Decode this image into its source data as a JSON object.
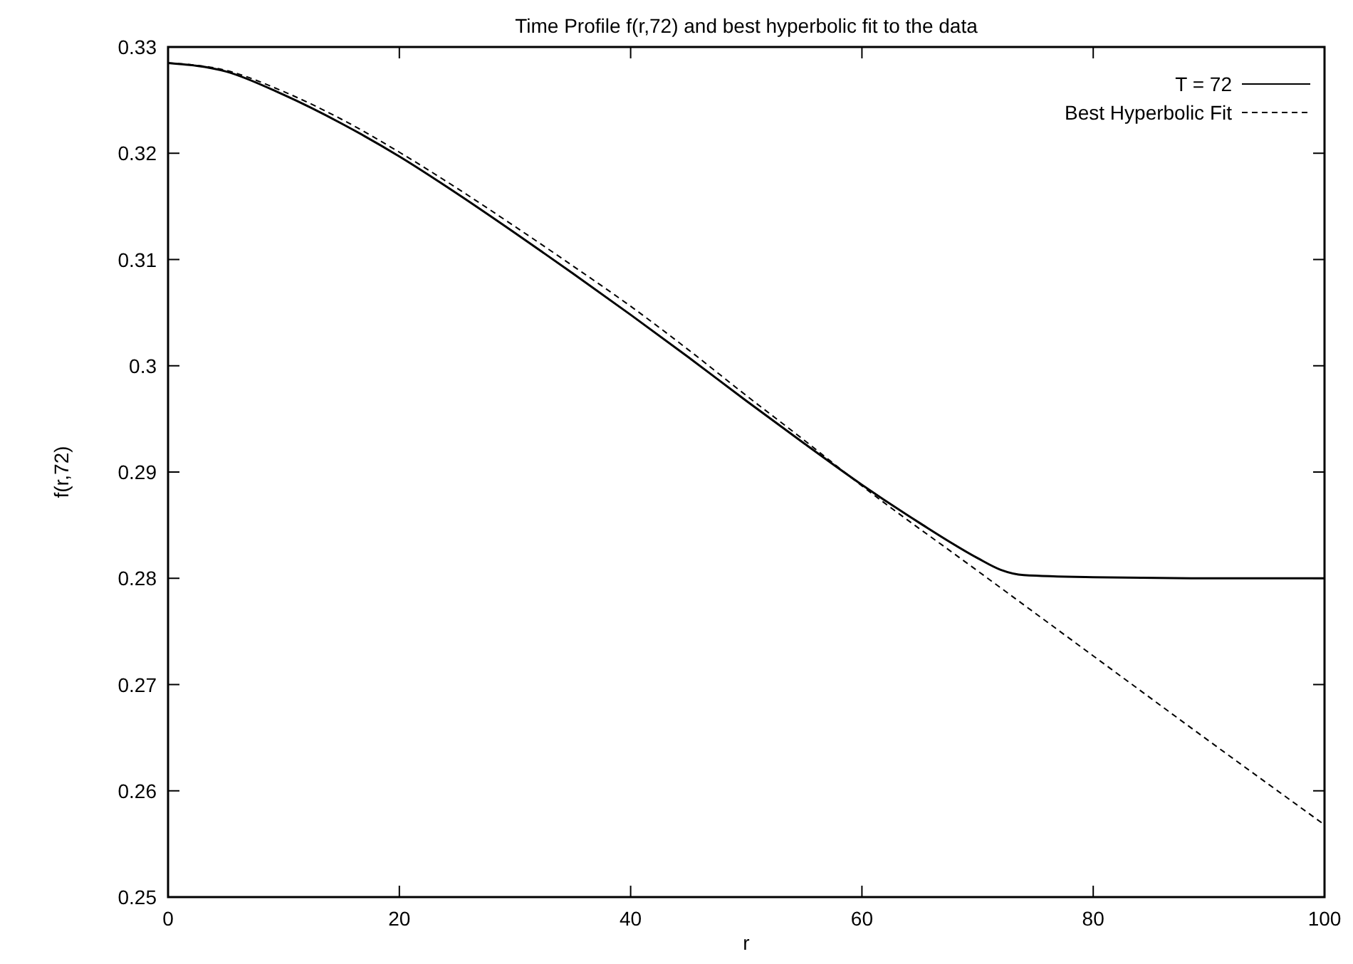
{
  "chart_data": {
    "type": "line",
    "title": "Time Profile f(r,72) and best hyperbolic fit to the data",
    "xlabel": "r",
    "ylabel": "f(r,72)",
    "xlim": [
      0,
      100
    ],
    "xticks": [
      0,
      20,
      40,
      60,
      80,
      100
    ],
    "ylim": [
      0.25,
      0.33
    ],
    "yticks": [
      0.25,
      0.26,
      0.27,
      0.28,
      0.29,
      0.3,
      0.31,
      0.32,
      0.33
    ],
    "legend": "top right",
    "grid": false,
    "series": [
      {
        "name": "T = 72",
        "color": "#000000",
        "line_style": "solid",
        "x": [
          0,
          5,
          10,
          15,
          20,
          25,
          30,
          35,
          40,
          45,
          50,
          55,
          60,
          65,
          70,
          72,
          74,
          80,
          90,
          100
        ],
        "values": [
          0.3285,
          0.3277,
          0.3255,
          0.3228,
          0.3197,
          0.3162,
          0.3125,
          0.3087,
          0.3048,
          0.3008,
          0.2967,
          0.2927,
          0.2888,
          0.2852,
          0.2819,
          0.2808,
          0.2803,
          0.2801,
          0.28,
          0.28
        ]
      },
      {
        "name": "Best Hyperbolic Fit",
        "color": "#000000",
        "line_style": "dashed",
        "x": [
          0,
          5,
          10,
          15,
          20,
          25,
          30,
          35,
          40,
          45,
          50,
          55,
          60,
          70,
          80,
          90,
          100
        ],
        "values": [
          0.3285,
          0.3278,
          0.3258,
          0.3232,
          0.3201,
          0.3167,
          0.3131,
          0.3094,
          0.3056,
          0.3015,
          0.2972,
          0.293,
          0.2887,
          0.2807,
          0.2727,
          0.2647,
          0.2568
        ]
      }
    ]
  }
}
